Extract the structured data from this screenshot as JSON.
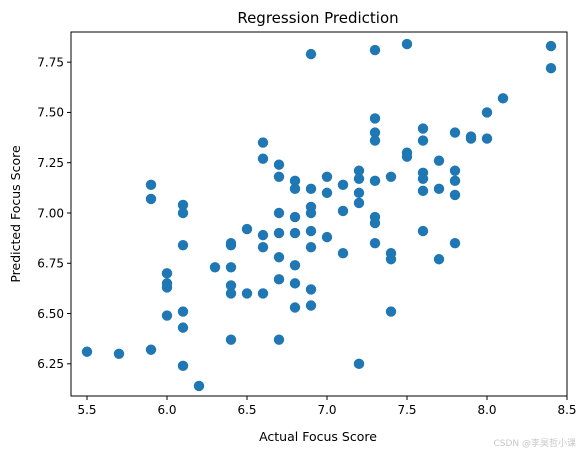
{
  "chart_data": {
    "type": "scatter",
    "title": "Regression Prediction",
    "xlabel": "Actual Focus Score",
    "ylabel": "Predicted Focus Score",
    "xlim": [
      5.4,
      8.5
    ],
    "ylim": [
      6.09,
      7.9
    ],
    "xticks": [
      5.5,
      6.0,
      6.5,
      7.0,
      7.5,
      8.0,
      8.5
    ],
    "xtick_labels": [
      "5.5",
      "6.0",
      "6.5",
      "7.0",
      "7.5",
      "8.0",
      "8.5"
    ],
    "yticks": [
      6.25,
      6.5,
      6.75,
      7.0,
      7.25,
      7.5,
      7.75
    ],
    "ytick_labels": [
      "6.25",
      "6.50",
      "6.75",
      "7.00",
      "7.25",
      "7.50",
      "7.75"
    ],
    "grid": false,
    "marker_color": "#1f77b4",
    "points": [
      [
        5.5,
        6.31
      ],
      [
        5.7,
        6.3
      ],
      [
        5.9,
        6.32
      ],
      [
        5.9,
        7.14
      ],
      [
        5.9,
        7.07
      ],
      [
        6.0,
        6.7
      ],
      [
        6.0,
        6.65
      ],
      [
        6.0,
        6.63
      ],
      [
        6.0,
        6.49
      ],
      [
        6.1,
        7.04
      ],
      [
        6.1,
        7.0
      ],
      [
        6.1,
        6.84
      ],
      [
        6.1,
        6.51
      ],
      [
        6.1,
        6.43
      ],
      [
        6.1,
        6.24
      ],
      [
        6.2,
        6.14
      ],
      [
        6.3,
        6.73
      ],
      [
        6.4,
        6.85
      ],
      [
        6.4,
        6.84
      ],
      [
        6.4,
        6.73
      ],
      [
        6.4,
        6.64
      ],
      [
        6.4,
        6.6
      ],
      [
        6.4,
        6.37
      ],
      [
        6.5,
        6.92
      ],
      [
        6.5,
        6.6
      ],
      [
        6.6,
        7.35
      ],
      [
        6.6,
        7.27
      ],
      [
        6.6,
        6.89
      ],
      [
        6.6,
        6.83
      ],
      [
        6.6,
        6.6
      ],
      [
        6.7,
        7.24
      ],
      [
        6.7,
        7.18
      ],
      [
        6.7,
        7.0
      ],
      [
        6.7,
        6.9
      ],
      [
        6.7,
        6.78
      ],
      [
        6.7,
        6.67
      ],
      [
        6.7,
        6.37
      ],
      [
        6.8,
        7.16
      ],
      [
        6.8,
        7.12
      ],
      [
        6.8,
        6.98
      ],
      [
        6.8,
        6.9
      ],
      [
        6.8,
        6.74
      ],
      [
        6.8,
        6.65
      ],
      [
        6.8,
        6.53
      ],
      [
        6.9,
        7.79
      ],
      [
        6.9,
        7.12
      ],
      [
        6.9,
        7.03
      ],
      [
        6.9,
        7.0
      ],
      [
        6.9,
        6.91
      ],
      [
        6.9,
        6.83
      ],
      [
        6.9,
        6.62
      ],
      [
        6.9,
        6.54
      ],
      [
        7.0,
        7.18
      ],
      [
        7.0,
        7.1
      ],
      [
        7.0,
        6.88
      ],
      [
        7.1,
        7.14
      ],
      [
        7.1,
        7.01
      ],
      [
        7.1,
        6.8
      ],
      [
        7.2,
        7.21
      ],
      [
        7.2,
        7.17
      ],
      [
        7.2,
        7.1
      ],
      [
        7.2,
        7.05
      ],
      [
        7.2,
        6.25
      ],
      [
        7.3,
        7.81
      ],
      [
        7.3,
        7.47
      ],
      [
        7.3,
        7.4
      ],
      [
        7.3,
        7.36
      ],
      [
        7.3,
        7.16
      ],
      [
        7.3,
        6.98
      ],
      [
        7.3,
        6.95
      ],
      [
        7.3,
        6.85
      ],
      [
        7.4,
        7.18
      ],
      [
        7.4,
        6.8
      ],
      [
        7.4,
        6.77
      ],
      [
        7.4,
        6.51
      ],
      [
        7.5,
        7.84
      ],
      [
        7.5,
        7.3
      ],
      [
        7.5,
        7.28
      ],
      [
        7.6,
        7.42
      ],
      [
        7.6,
        7.36
      ],
      [
        7.6,
        7.2
      ],
      [
        7.6,
        7.17
      ],
      [
        7.6,
        7.11
      ],
      [
        7.6,
        6.91
      ],
      [
        7.7,
        7.26
      ],
      [
        7.7,
        7.12
      ],
      [
        7.7,
        6.77
      ],
      [
        7.8,
        7.4
      ],
      [
        7.8,
        7.21
      ],
      [
        7.8,
        7.16
      ],
      [
        7.8,
        7.09
      ],
      [
        7.8,
        6.85
      ],
      [
        7.9,
        7.38
      ],
      [
        7.9,
        7.37
      ],
      [
        8.0,
        7.5
      ],
      [
        8.0,
        7.37
      ],
      [
        8.1,
        7.57
      ],
      [
        8.4,
        7.83
      ],
      [
        8.4,
        7.72
      ]
    ]
  },
  "watermark": "CSDN @李昊哲小课"
}
